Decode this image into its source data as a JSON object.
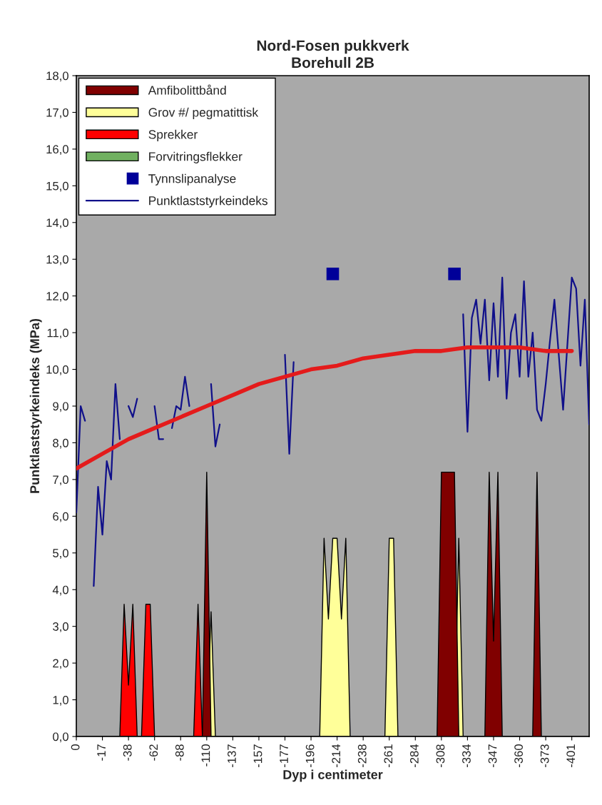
{
  "chart_data": {
    "type": "area",
    "title": "Nord-Fosen pukkverk\nBorehull 2B",
    "xlabel": "Dyp i centimeter",
    "ylabel": "Punktlaststyrkeindeks (MPa)",
    "categories": [
      "0",
      null,
      null,
      null,
      null,
      null,
      "-17",
      null,
      null,
      null,
      null,
      null,
      "-38",
      null,
      null,
      null,
      null,
      null,
      "-62",
      null,
      null,
      null,
      null,
      null,
      "-88",
      null,
      null,
      null,
      null,
      null,
      "-110",
      null,
      null,
      null,
      null,
      null,
      "-137",
      null,
      null,
      null,
      null,
      null,
      "-157",
      null,
      null,
      null,
      null,
      null,
      "-177",
      null,
      null,
      null,
      null,
      null,
      "-196",
      null,
      null,
      null,
      null,
      null,
      "-214",
      null,
      null,
      null,
      null,
      null,
      "-238",
      null,
      null,
      null,
      null,
      null,
      "-261",
      null,
      null,
      null,
      null,
      null,
      "-284",
      null,
      null,
      null,
      null,
      null,
      "-308",
      null,
      null,
      null,
      null,
      null,
      "-334",
      null,
      null,
      null,
      null,
      null,
      "-347",
      null,
      null,
      null,
      null,
      null,
      "-360",
      null,
      null,
      null,
      null,
      null,
      "-373",
      null,
      null,
      null,
      null,
      null,
      "-401",
      null,
      null,
      null,
      null
    ],
    "series": [
      {
        "name": "Amfibolittbånd",
        "color": "#800000",
        "values": [
          0,
          0,
          0,
          0,
          0,
          0,
          0,
          0,
          0,
          0,
          0,
          0,
          0,
          0,
          0,
          0,
          0,
          0,
          0,
          0,
          0,
          0,
          0,
          0,
          0,
          0,
          0,
          0,
          0,
          0,
          7.2,
          0,
          0,
          0,
          0,
          0,
          0,
          0,
          0,
          0,
          0,
          0,
          0,
          0,
          0,
          0,
          0,
          0,
          0,
          0,
          0,
          0,
          0,
          0,
          0,
          0,
          0,
          0,
          0,
          0,
          0,
          0,
          0,
          0,
          0,
          0,
          0,
          0,
          0,
          0,
          0,
          0,
          0,
          0,
          0,
          0,
          0,
          0,
          0,
          0,
          0,
          0,
          0,
          0,
          7.2,
          7.2,
          7.2,
          7.2,
          0,
          0,
          0,
          0,
          0,
          0,
          0,
          7.2,
          2.6,
          7.2,
          0,
          0,
          0,
          0,
          0,
          0,
          0,
          0,
          7.2,
          0,
          0,
          0,
          0,
          0,
          0,
          0,
          0,
          0,
          0,
          0,
          0
        ]
      },
      {
        "name": "Grov #/ pegmatittisk",
        "color": "#ffff99",
        "values": [
          0,
          0,
          0,
          0,
          0,
          0,
          0,
          0,
          0,
          0,
          0,
          0,
          0,
          0,
          0,
          0,
          0,
          0,
          0,
          0,
          0,
          0,
          0,
          0,
          0,
          0,
          0,
          0,
          0,
          0,
          0,
          3.4,
          0,
          0,
          0,
          0,
          0,
          0,
          0,
          0,
          0,
          0,
          0,
          0,
          0,
          0,
          0,
          0,
          0,
          0,
          0,
          0,
          0,
          0,
          0,
          0,
          0,
          5.4,
          3.2,
          5.4,
          5.4,
          3.2,
          5.4,
          0,
          0,
          0,
          0,
          0,
          0,
          0,
          0,
          0,
          5.4,
          5.4,
          0,
          0,
          0,
          0,
          0,
          0,
          0,
          0,
          0,
          0,
          0,
          0,
          0,
          0,
          5.4,
          0,
          0,
          0,
          0,
          0,
          0,
          0,
          0,
          0,
          0,
          0,
          0,
          0,
          0,
          0,
          0,
          0,
          0,
          0,
          0,
          0,
          0,
          0,
          0,
          0,
          0,
          0,
          0,
          0,
          0
        ]
      },
      {
        "name": "Sprekker",
        "color": "#ff0000",
        "values": [
          0,
          0,
          0,
          0,
          0,
          0,
          0,
          0,
          0,
          0,
          0,
          3.6,
          1.4,
          3.6,
          0,
          0,
          3.6,
          3.6,
          0,
          0,
          0,
          0,
          0,
          0,
          0,
          0,
          0,
          0,
          3.6,
          0,
          0,
          0,
          0,
          0,
          0,
          0,
          0,
          0,
          0,
          0,
          0,
          0,
          0,
          0,
          0,
          0,
          0,
          0,
          0,
          0,
          0,
          0,
          0,
          0,
          0,
          0,
          0,
          0,
          0,
          0,
          0,
          0,
          0,
          0,
          0,
          0,
          0,
          0,
          0,
          0,
          0,
          0,
          0,
          0,
          0,
          0,
          0,
          0,
          0,
          0,
          0,
          0,
          0,
          0,
          0,
          0,
          0,
          0,
          0,
          0,
          0,
          0,
          0,
          0,
          0,
          0,
          0,
          0,
          0,
          0,
          0,
          0,
          0,
          0,
          0,
          0,
          0,
          0,
          0,
          0,
          0,
          0,
          0,
          0,
          0,
          0,
          0,
          0,
          0
        ]
      },
      {
        "name": "Forvitringsflekker",
        "color": "#70b060",
        "values": [
          null,
          null,
          null,
          null,
          null,
          null,
          null,
          null,
          null,
          null,
          null,
          null,
          null,
          null,
          null,
          null,
          null,
          null,
          null,
          null,
          null,
          null,
          null,
          null,
          null,
          null,
          null,
          null,
          null,
          null,
          null,
          null,
          null,
          null,
          null,
          null,
          null,
          null,
          null,
          null,
          null,
          null,
          null,
          null,
          null,
          null,
          null,
          null,
          null,
          null,
          null,
          null,
          null,
          null,
          null,
          null,
          null,
          null,
          null,
          null,
          null,
          null,
          null,
          null,
          null,
          null,
          null,
          null,
          null,
          null,
          null,
          null,
          null,
          null,
          null,
          null,
          null,
          null,
          null,
          null,
          null,
          null,
          null,
          null,
          null,
          null,
          null,
          null,
          null,
          null,
          null,
          null,
          null,
          null,
          null,
          null,
          null,
          null,
          null,
          null,
          null,
          null,
          null,
          null,
          null,
          null,
          null,
          null,
          null,
          null,
          null,
          null,
          null,
          null,
          null,
          null,
          null,
          null,
          null
        ]
      },
      {
        "name": "Tynnslipanalyse",
        "type": "scatter",
        "marker": "square",
        "color": "#000099",
        "values": [
          null,
          null,
          null,
          null,
          null,
          null,
          null,
          null,
          null,
          null,
          null,
          null,
          null,
          null,
          null,
          null,
          null,
          null,
          null,
          null,
          null,
          null,
          null,
          null,
          null,
          null,
          null,
          null,
          null,
          null,
          null,
          null,
          null,
          null,
          null,
          null,
          null,
          null,
          null,
          null,
          null,
          null,
          null,
          null,
          null,
          null,
          null,
          null,
          null,
          null,
          null,
          null,
          null,
          null,
          null,
          null,
          null,
          null,
          null,
          12.6,
          null,
          null,
          null,
          null,
          null,
          null,
          null,
          null,
          null,
          null,
          null,
          null,
          null,
          null,
          null,
          null,
          null,
          null,
          null,
          null,
          null,
          null,
          null,
          null,
          null,
          null,
          null,
          12.6,
          null,
          null,
          null,
          null,
          null,
          null,
          null,
          null,
          null,
          null,
          null,
          null,
          null,
          null,
          null,
          null,
          null,
          null,
          null,
          null,
          null,
          null,
          null,
          null,
          null,
          null,
          null,
          null,
          null,
          null,
          null
        ]
      },
      {
        "name": "Punktlaststyrkeindeks",
        "type": "line",
        "color": "#10108a",
        "values": [
          6.1,
          9.0,
          8.6,
          null,
          4.1,
          6.8,
          5.5,
          7.5,
          7.0,
          9.6,
          8.1,
          null,
          9.0,
          8.7,
          9.2,
          null,
          null,
          null,
          9.0,
          8.1,
          8.1,
          null,
          8.4,
          9.0,
          8.9,
          9.8,
          9.0,
          null,
          null,
          null,
          null,
          9.6,
          7.9,
          8.5,
          null,
          null,
          null,
          null,
          null,
          null,
          null,
          null,
          null,
          null,
          null,
          null,
          null,
          null,
          10.4,
          7.7,
          10.2,
          null,
          null,
          null,
          null,
          null,
          null,
          null,
          null,
          null,
          null,
          null,
          null,
          null,
          null,
          null,
          null,
          null,
          null,
          null,
          null,
          null,
          null,
          null,
          null,
          null,
          null,
          null,
          null,
          null,
          null,
          null,
          null,
          null,
          null,
          null,
          null,
          null,
          null,
          11.5,
          8.3,
          11.4,
          11.9,
          10.7,
          11.9,
          9.7,
          11.8,
          9.8,
          12.5,
          9.2,
          11.0,
          11.5,
          9.8,
          12.4,
          9.8,
          11.0,
          8.9,
          8.6,
          9.6,
          10.8,
          11.9,
          10.4,
          8.9,
          10.7,
          12.5,
          12.2,
          10.1,
          11.9,
          8.5
        ]
      },
      {
        "type": "line",
        "color": "#e41b1b",
        "x": [
          "0",
          "-17",
          "-38",
          "-62",
          "-88",
          "-110",
          "-137",
          "-157",
          "-177",
          "-196",
          "-214",
          "-238",
          "-261",
          "-284",
          "-308",
          "-334",
          "-347",
          "-360",
          "-373",
          "-401"
        ],
        "values": [
          7.3,
          7.7,
          8.1,
          8.4,
          8.7,
          9.0,
          9.3,
          9.6,
          9.8,
          10.0,
          10.1,
          10.3,
          10.4,
          10.5,
          10.5,
          10.6,
          10.6,
          10.6,
          10.5,
          10.5
        ]
      }
    ],
    "ylim": [
      0,
      18
    ],
    "yticks": [
      {
        "value": 0,
        "label": "0,0"
      },
      {
        "value": 1,
        "label": "1,0"
      },
      {
        "value": 2,
        "label": "2,0"
      },
      {
        "value": 3,
        "label": "3,0"
      },
      {
        "value": 4,
        "label": "4,0"
      },
      {
        "value": 5,
        "label": "5,0"
      },
      {
        "value": 6,
        "label": "6,0"
      },
      {
        "value": 7,
        "label": "7,0"
      },
      {
        "value": 8,
        "label": "8,0"
      },
      {
        "value": 9,
        "label": "9,0"
      },
      {
        "value": 10,
        "label": "10,0"
      },
      {
        "value": 11,
        "label": "11,0"
      },
      {
        "value": 12,
        "label": "12,0"
      },
      {
        "value": 13,
        "label": "13,0"
      },
      {
        "value": 14,
        "label": "14,0"
      },
      {
        "value": 15,
        "label": "15,0"
      },
      {
        "value": 16,
        "label": "16,0"
      },
      {
        "value": 17,
        "label": "17,0"
      },
      {
        "value": 18,
        "label": "18,0"
      }
    ],
    "grid": false,
    "legend": "top left"
  }
}
